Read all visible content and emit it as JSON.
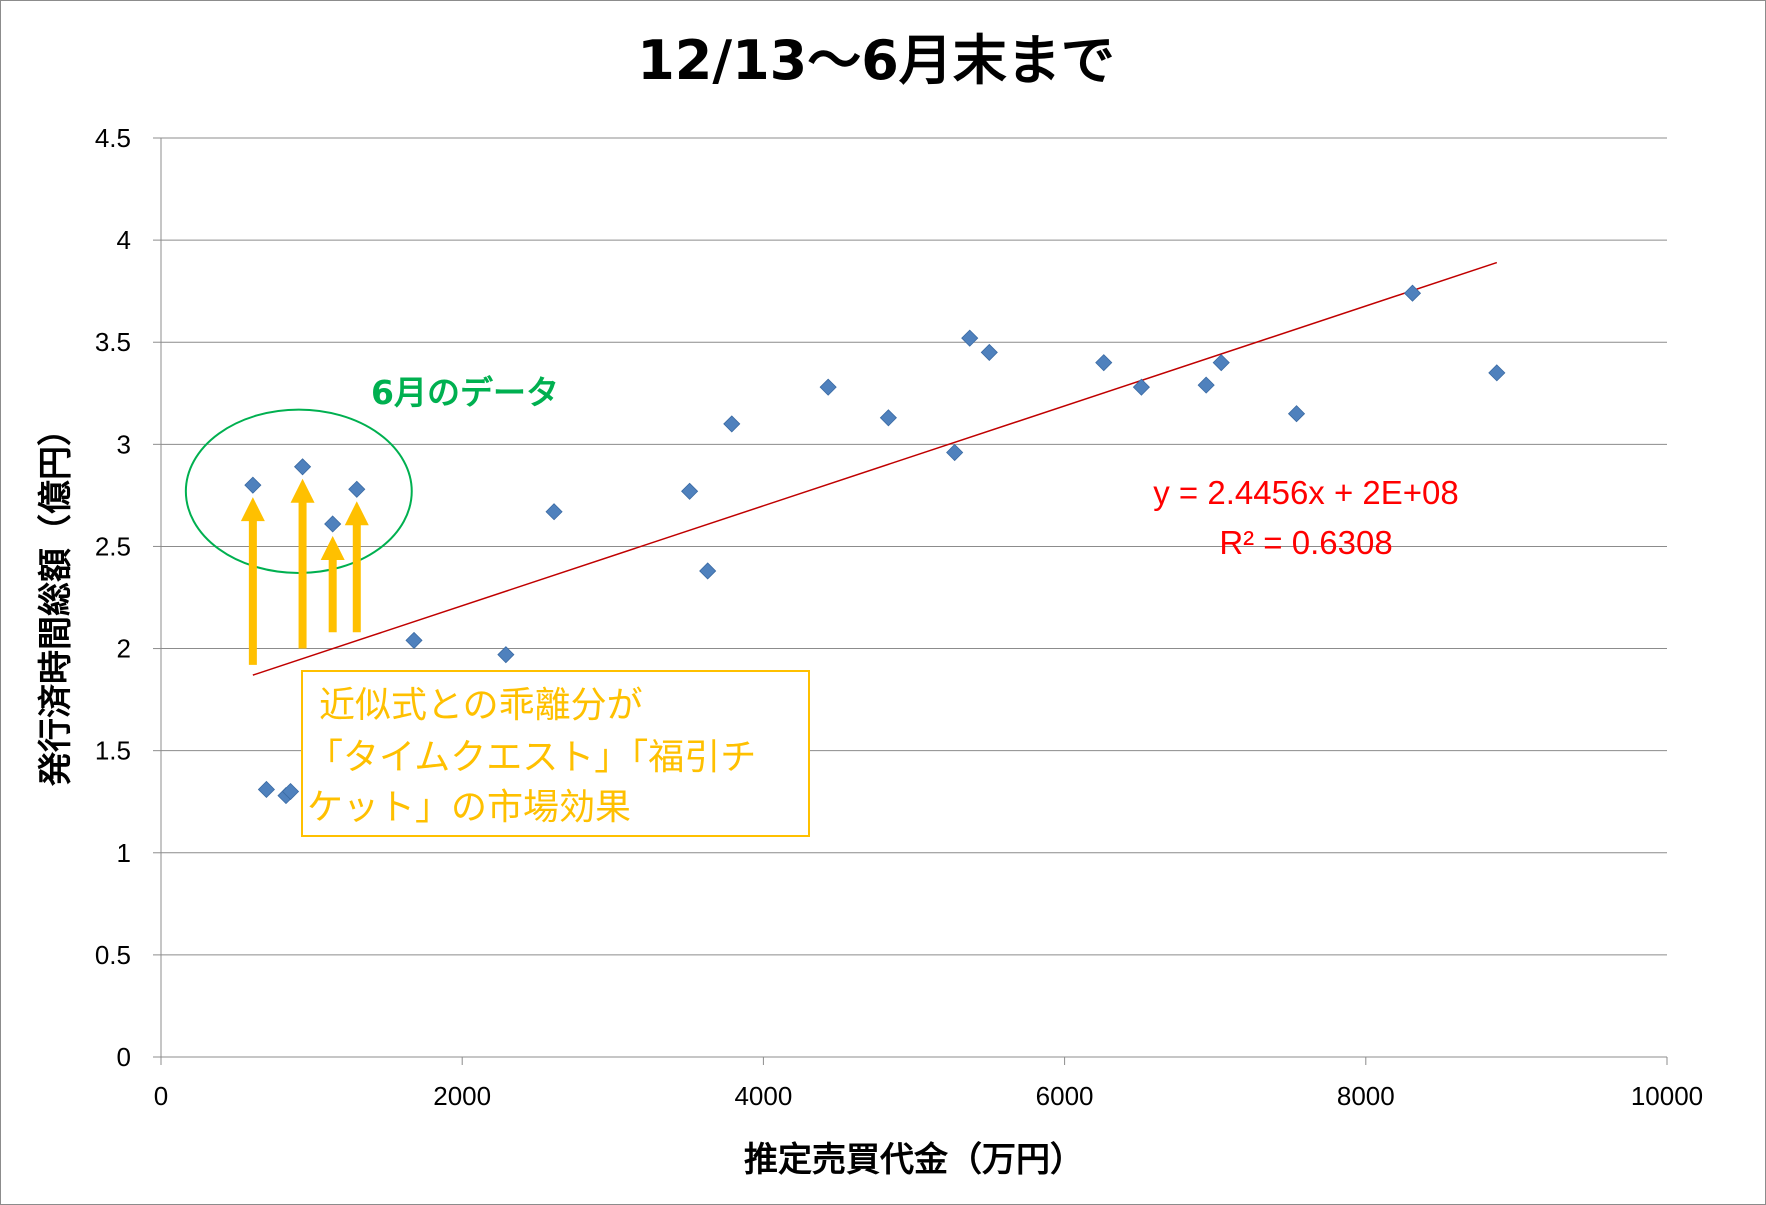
{
  "chart_data": {
    "type": "scatter",
    "title": "12/13～6月末まで",
    "xlabel": "推定売買代金（万円）",
    "ylabel": "発行済時間総額（億円）",
    "xlim": [
      0,
      10000
    ],
    "ylim": [
      0,
      4.5
    ],
    "xticks": [
      0,
      2000,
      4000,
      6000,
      8000,
      10000
    ],
    "xtick_labels": [
      "0",
      "2000",
      "4000",
      "6000",
      "8000",
      "10000"
    ],
    "yticks": [
      0,
      0.5,
      1,
      1.5,
      2,
      2.5,
      3,
      3.5,
      4,
      4.5
    ],
    "ytick_labels": [
      "0",
      "0.5",
      "1",
      "1.5",
      "2",
      "2.5",
      "3",
      "3.5",
      "4",
      "4.5"
    ],
    "grid": "horizontal",
    "points": [
      {
        "x": 610,
        "y": 2.8
      },
      {
        "x": 940,
        "y": 2.89
      },
      {
        "x": 1140,
        "y": 2.61
      },
      {
        "x": 1300,
        "y": 2.78
      },
      {
        "x": 700,
        "y": 1.31
      },
      {
        "x": 830,
        "y": 1.28
      },
      {
        "x": 860,
        "y": 1.3
      },
      {
        "x": 1680,
        "y": 2.04
      },
      {
        "x": 2290,
        "y": 1.97
      },
      {
        "x": 2610,
        "y": 2.67
      },
      {
        "x": 3510,
        "y": 2.77
      },
      {
        "x": 3630,
        "y": 2.38
      },
      {
        "x": 3790,
        "y": 3.1
      },
      {
        "x": 4430,
        "y": 3.28
      },
      {
        "x": 4830,
        "y": 3.13
      },
      {
        "x": 5270,
        "y": 2.96
      },
      {
        "x": 5370,
        "y": 3.52
      },
      {
        "x": 5500,
        "y": 3.45
      },
      {
        "x": 6260,
        "y": 3.4
      },
      {
        "x": 6510,
        "y": 3.28
      },
      {
        "x": 6940,
        "y": 3.29
      },
      {
        "x": 7040,
        "y": 3.4
      },
      {
        "x": 7540,
        "y": 3.15
      },
      {
        "x": 8310,
        "y": 3.74
      },
      {
        "x": 8870,
        "y": 3.35
      }
    ],
    "trendline": {
      "x": [
        610,
        8870
      ],
      "y": [
        1.87,
        3.89
      ],
      "color": "#c00000",
      "equation": "y = 2.4456x + 2E+08",
      "r2": "R² = 0.6308"
    },
    "marker_color": "#4f81bd",
    "annotations": {
      "june_label": "6月のデータ",
      "june_color": "#00b050",
      "june_ellipse": {
        "cx": 915,
        "cy": 2.77,
        "rx": 750,
        "ry": 0.4
      },
      "arrow_color": "#ffc000",
      "arrows": [
        {
          "x": 610,
          "from": 1.92,
          "to": 2.8
        },
        {
          "x": 940,
          "from": 2.0,
          "to": 2.89
        },
        {
          "x": 1140,
          "from": 2.08,
          "to": 2.61
        },
        {
          "x": 1300,
          "from": 2.08,
          "to": 2.78
        }
      ],
      "note_lines": [
        "近似式との乖離分が",
        "「タイムクエスト」「福引チ",
        "ケット」の市場効果"
      ]
    }
  }
}
